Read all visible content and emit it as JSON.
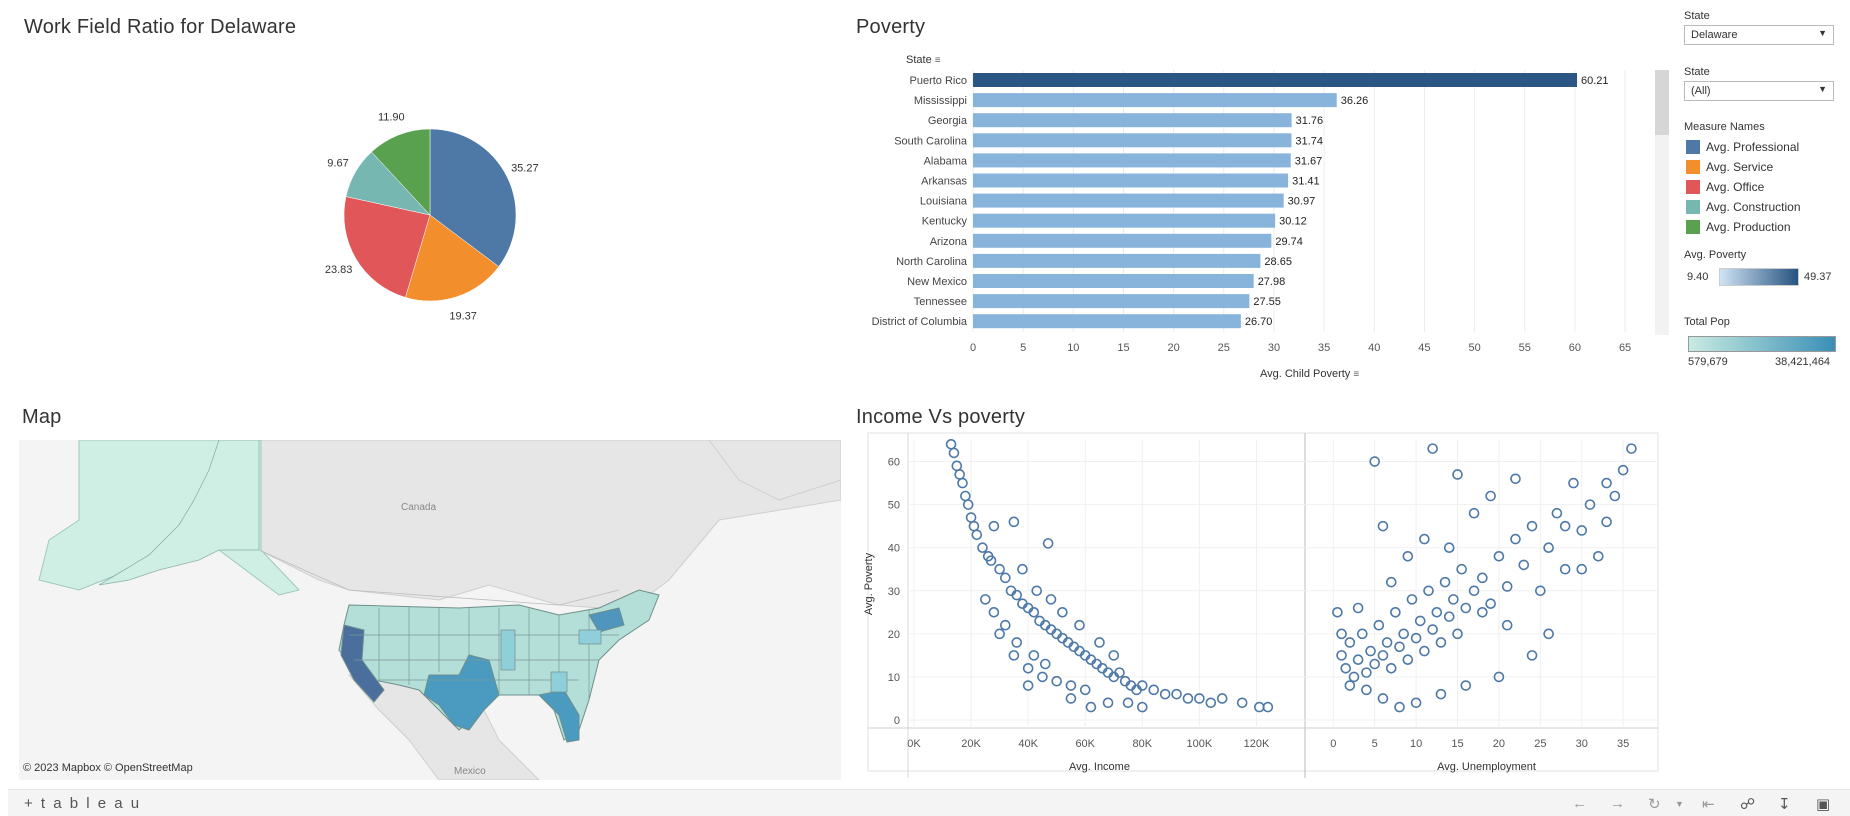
{
  "pie": {
    "title": "Work Field Ratio for Delaware"
  },
  "bar": {
    "title": "Poverty",
    "row_header": "State",
    "axis_title": "Avg. Child Poverty"
  },
  "map": {
    "title": "Map",
    "attribution": "© 2023 Mapbox  © OpenStreetMap",
    "label_canada": "Canada",
    "label_mexico": "Mexico"
  },
  "scatter": {
    "title": "Income Vs poverty"
  },
  "filters": {
    "state1_label": "State",
    "state1_value": "Delaware",
    "state2_label": "State",
    "state2_value": "(All)"
  },
  "legend": {
    "measure_title": "Measure Names",
    "measures": [
      {
        "label": "Avg. Professional",
        "color": "#4e79a7"
      },
      {
        "label": "Avg. Service",
        "color": "#f28e2b"
      },
      {
        "label": "Avg. Office",
        "color": "#e15759"
      },
      {
        "label": "Avg. Construction",
        "color": "#76b7b2"
      },
      {
        "label": "Avg. Production",
        "color": "#59a14f"
      }
    ],
    "poverty_title": "Avg. Poverty",
    "poverty_min": "9.40",
    "poverty_max": "49.37",
    "pop_title": "Total Pop",
    "pop_min": "579,679",
    "pop_max": "38,421,464"
  },
  "toolbar": {
    "brand": "+ t a b l e a u"
  },
  "chart_data": [
    {
      "type": "pie",
      "title": "Work Field Ratio for Delaware",
      "slices": [
        {
          "label": "Avg. Professional",
          "value": 35.27,
          "color": "#4e79a7"
        },
        {
          "label": "Avg. Service",
          "value": 19.37,
          "color": "#f28e2b"
        },
        {
          "label": "Avg. Office",
          "value": 23.83,
          "color": "#e15759"
        },
        {
          "label": "Avg. Construction",
          "value": 9.67,
          "color": "#76b7b2"
        },
        {
          "label": "Avg. Production",
          "value": 11.9,
          "color": "#59a14f"
        }
      ]
    },
    {
      "type": "bar",
      "title": "Poverty",
      "orientation": "horizontal",
      "categories": [
        "Puerto Rico",
        "Mississippi",
        "Georgia",
        "South Carolina",
        "Alabama",
        "Arkansas",
        "Louisiana",
        "Kentucky",
        "Arizona",
        "North Carolina",
        "New Mexico",
        "Tennessee",
        "District of Columbia"
      ],
      "values": [
        60.21,
        36.26,
        31.76,
        31.74,
        31.67,
        31.41,
        30.97,
        30.12,
        29.74,
        28.65,
        27.98,
        27.55,
        26.7
      ],
      "value_labels": [
        "60.21",
        "36.26",
        "31.76",
        "31.74",
        "31.67",
        "31.41",
        "30.97",
        "30.12",
        "29.74",
        "28.65",
        "27.98",
        "27.55",
        "26.70"
      ],
      "xlabel": "Avg. Child Poverty",
      "ylabel": "State",
      "xlim": [
        0,
        65
      ],
      "xticks": [
        0,
        5,
        10,
        15,
        20,
        25,
        30,
        35,
        40,
        45,
        50,
        55,
        60,
        65
      ],
      "grid": true
    },
    {
      "type": "scatter",
      "title": "Income Vs poverty",
      "ylabel": "Avg. Poverty",
      "ylim": [
        0,
        65
      ],
      "yticks": [
        0,
        10,
        20,
        30,
        40,
        50,
        60
      ],
      "panels": [
        {
          "xlabel": "Avg. Income",
          "xlim": [
            0,
            130000
          ],
          "xticks": [
            0,
            20000,
            40000,
            60000,
            80000,
            100000,
            120000
          ],
          "xtick_labels": [
            "0K",
            "20K",
            "40K",
            "60K",
            "80K",
            "100K",
            "120K"
          ],
          "points": [
            [
              13000,
              64
            ],
            [
              14000,
              62
            ],
            [
              15000,
              59
            ],
            [
              16000,
              57
            ],
            [
              17000,
              55
            ],
            [
              18000,
              52
            ],
            [
              19000,
              50
            ],
            [
              20000,
              47
            ],
            [
              21000,
              45
            ],
            [
              22000,
              43
            ],
            [
              24000,
              40
            ],
            [
              26000,
              38
            ],
            [
              28000,
              45
            ],
            [
              30000,
              35
            ],
            [
              32000,
              33
            ],
            [
              34000,
              30
            ],
            [
              36000,
              29
            ],
            [
              38000,
              27
            ],
            [
              40000,
              26
            ],
            [
              42000,
              25
            ],
            [
              44000,
              23
            ],
            [
              46000,
              22
            ],
            [
              48000,
              21
            ],
            [
              50000,
              20
            ],
            [
              52000,
              19
            ],
            [
              54000,
              18
            ],
            [
              56000,
              17
            ],
            [
              58000,
              16
            ],
            [
              60000,
              15
            ],
            [
              62000,
              14
            ],
            [
              64000,
              13
            ],
            [
              66000,
              12
            ],
            [
              68000,
              11
            ],
            [
              70000,
              10
            ],
            [
              72000,
              11
            ],
            [
              74000,
              9
            ],
            [
              76000,
              8
            ],
            [
              78000,
              7
            ],
            [
              80000,
              8
            ],
            [
              84000,
              7
            ],
            [
              88000,
              6
            ],
            [
              92000,
              6
            ],
            [
              96000,
              5
            ],
            [
              100000,
              5
            ],
            [
              104000,
              4
            ],
            [
              108000,
              5
            ],
            [
              115000,
              4
            ],
            [
              121000,
              3
            ],
            [
              124000,
              3
            ],
            [
              30000,
              20
            ],
            [
              35000,
              15
            ],
            [
              40000,
              12
            ],
            [
              45000,
              10
            ],
            [
              50000,
              9
            ],
            [
              55000,
              8
            ],
            [
              60000,
              7
            ],
            [
              38000,
              35
            ],
            [
              43000,
              30
            ],
            [
              48000,
              28
            ],
            [
              52000,
              25
            ],
            [
              58000,
              22
            ],
            [
              65000,
              18
            ],
            [
              70000,
              15
            ],
            [
              25000,
              28
            ],
            [
              28000,
              25
            ],
            [
              32000,
              22
            ],
            [
              36000,
              18
            ],
            [
              42000,
              15
            ],
            [
              46000,
              13
            ],
            [
              47000,
              41
            ],
            [
              35000,
              46
            ],
            [
              27000,
              37
            ],
            [
              40000,
              8
            ],
            [
              55000,
              5
            ],
            [
              62000,
              3
            ],
            [
              68000,
              4
            ],
            [
              75000,
              4
            ],
            [
              80000,
              3
            ]
          ]
        },
        {
          "xlabel": "Avg. Unemployment",
          "xlim": [
            -1,
            38
          ],
          "xticks": [
            0,
            5,
            10,
            15,
            20,
            25,
            30,
            35
          ],
          "xtick_labels": [
            "0",
            "5",
            "10",
            "15",
            "20",
            "25",
            "30",
            "35"
          ],
          "points": [
            [
              1,
              15
            ],
            [
              1.5,
              12
            ],
            [
              2,
              18
            ],
            [
              2.5,
              10
            ],
            [
              3,
              14
            ],
            [
              3.5,
              20
            ],
            [
              4,
              11
            ],
            [
              4.5,
              16
            ],
            [
              5,
              13
            ],
            [
              5.5,
              22
            ],
            [
              6,
              15
            ],
            [
              6.5,
              18
            ],
            [
              7,
              12
            ],
            [
              7.5,
              25
            ],
            [
              8,
              17
            ],
            [
              8.5,
              20
            ],
            [
              9,
              14
            ],
            [
              9.5,
              28
            ],
            [
              10,
              19
            ],
            [
              10.5,
              23
            ],
            [
              11,
              16
            ],
            [
              11.5,
              30
            ],
            [
              12,
              21
            ],
            [
              12.5,
              25
            ],
            [
              13,
              18
            ],
            [
              13.5,
              32
            ],
            [
              14,
              24
            ],
            [
              14.5,
              28
            ],
            [
              15,
              20
            ],
            [
              15.5,
              35
            ],
            [
              16,
              26
            ],
            [
              17,
              30
            ],
            [
              18,
              33
            ],
            [
              19,
              27
            ],
            [
              20,
              38
            ],
            [
              21,
              31
            ],
            [
              22,
              42
            ],
            [
              23,
              36
            ],
            [
              24,
              45
            ],
            [
              25,
              30
            ],
            [
              26,
              40
            ],
            [
              27,
              48
            ],
            [
              28,
              35
            ],
            [
              29,
              55
            ],
            [
              30,
              44
            ],
            [
              31,
              50
            ],
            [
              32,
              38
            ],
            [
              33,
              46
            ],
            [
              34,
              52
            ],
            [
              35,
              58
            ],
            [
              36,
              63
            ],
            [
              15,
              57
            ],
            [
              12,
              63
            ],
            [
              6,
              45
            ],
            [
              5,
              60
            ],
            [
              9,
              38
            ],
            [
              11,
              42
            ],
            [
              17,
              48
            ],
            [
              19,
              52
            ],
            [
              22,
              56
            ],
            [
              26,
              20
            ],
            [
              24,
              15
            ],
            [
              20,
              10
            ],
            [
              16,
              8
            ],
            [
              13,
              6
            ],
            [
              10,
              4
            ],
            [
              8,
              3
            ],
            [
              6,
              5
            ],
            [
              4,
              7
            ],
            [
              2,
              8
            ],
            [
              0.5,
              25
            ],
            [
              1,
              20
            ],
            [
              3,
              26
            ],
            [
              7,
              32
            ],
            [
              14,
              40
            ],
            [
              18,
              25
            ],
            [
              21,
              22
            ],
            [
              28,
              45
            ],
            [
              30,
              35
            ],
            [
              33,
              55
            ]
          ]
        }
      ]
    }
  ]
}
